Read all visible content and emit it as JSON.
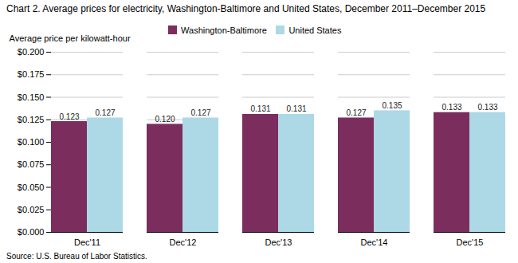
{
  "chart_data": {
    "type": "bar",
    "title": "Chart 2. Average prices for electricity, Washington-Baltimore  and United States, December 2011–December 2015",
    "ylabel": "Average price per kilowatt-hour",
    "source": "Source: U.S. Bureau of Labor Statistics.",
    "categories": [
      "Dec'11",
      "Dec'12",
      "Dec'13",
      "Dec'14",
      "Dec'15"
    ],
    "series": [
      {
        "name": "Washington-Baltimore",
        "color": "#7B2D5E",
        "values": [
          0.123,
          0.12,
          0.131,
          0.127,
          0.133
        ],
        "value_labels": [
          "0.123",
          "0.120",
          "0.131",
          "0.127",
          "0.133"
        ]
      },
      {
        "name": "United States",
        "color": "#ADD8E6",
        "values": [
          0.127,
          0.127,
          0.131,
          0.135,
          0.133
        ],
        "value_labels": [
          "0.127",
          "0.127",
          "0.131",
          "0.135",
          "0.133"
        ]
      }
    ],
    "ylim": [
      0.0,
      0.2
    ],
    "yticks": [
      {
        "value": 0.0,
        "label": "$0.000"
      },
      {
        "value": 0.025,
        "label": "$0.025"
      },
      {
        "value": 0.05,
        "label": "$0.050"
      },
      {
        "value": 0.075,
        "label": "$0.075"
      },
      {
        "value": 0.1,
        "label": "$0.100"
      },
      {
        "value": 0.125,
        "label": "$0.125"
      },
      {
        "value": 0.15,
        "label": "$0.150"
      },
      {
        "value": 0.175,
        "label": "$0.175"
      },
      {
        "value": 0.2,
        "label": "$0.200"
      }
    ],
    "grid": true,
    "legend": "top",
    "data_labels": true
  }
}
